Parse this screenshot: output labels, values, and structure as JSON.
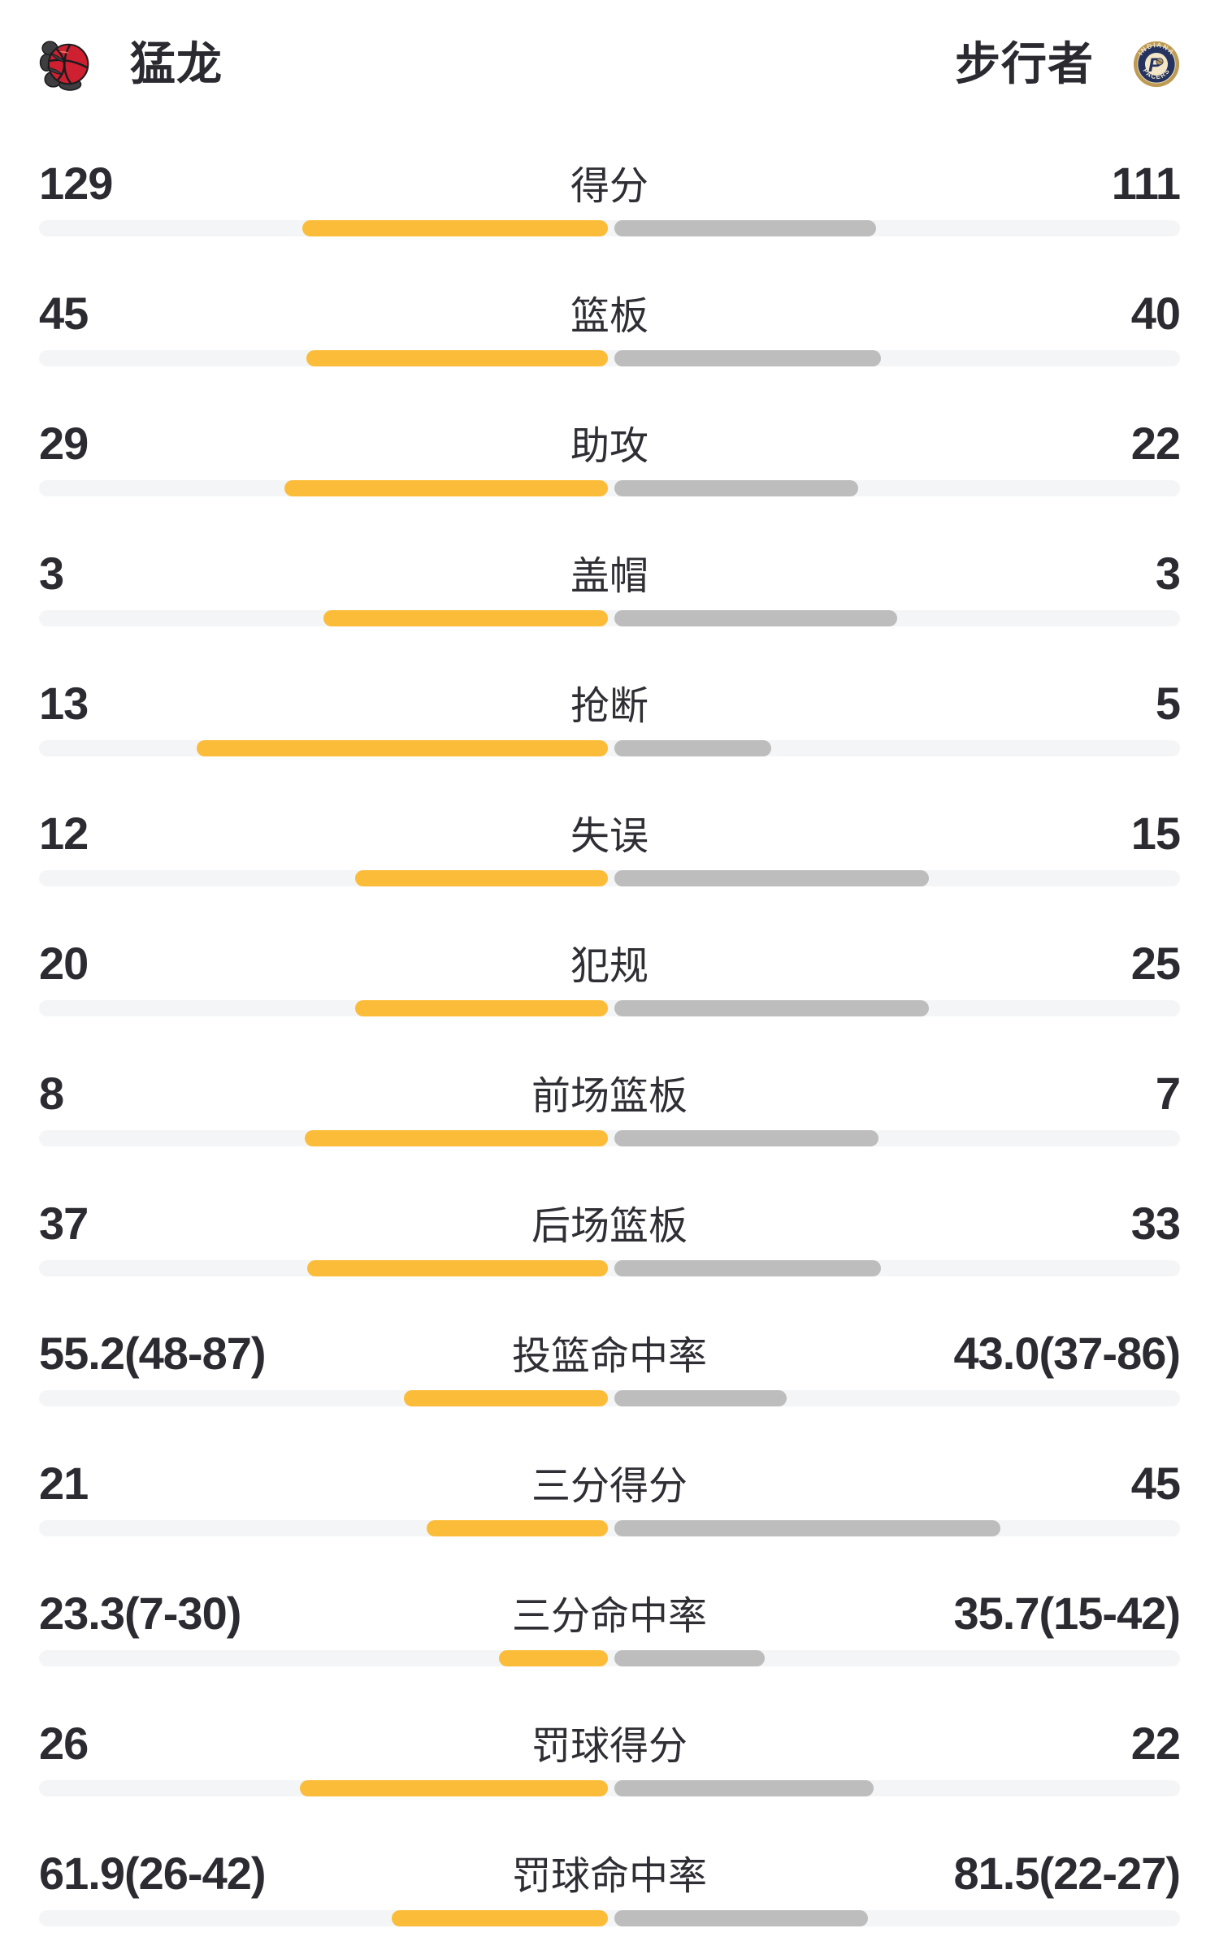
{
  "header": {
    "left_team": {
      "name": "猛龙",
      "logo": "raptors-logo"
    },
    "right_team": {
      "name": "步行者",
      "logo": "pacers-logo"
    }
  },
  "colors": {
    "background": "#FFFFFF",
    "text": "#2B2B31",
    "left_bar": "#FBBD39",
    "right_bar": "#BDBDBD",
    "bar_track": "#F4F5F7",
    "raptors_red": "#CE2030",
    "raptors_claw": "#3E3E40",
    "pacers_gold": "#BE9B54",
    "pacers_navy": "#24335F",
    "pacers_cream": "#F3E7C8"
  },
  "chart_data": {
    "type": "bar",
    "variant": "diverging-horizontal-team-comparison",
    "title": "",
    "legend_position": "top (team header row)",
    "grid": false,
    "categories": [
      "得分",
      "篮板",
      "助攻",
      "盖帽",
      "抢断",
      "失误",
      "犯规",
      "前场篮板",
      "后场篮板",
      "投篮命中率",
      "三分得分",
      "三分命中率",
      "罚球得分",
      "罚球命中率"
    ],
    "series": [
      {
        "name": "猛龙",
        "side": "left",
        "color": "#FBBD39",
        "values": [
          129,
          45,
          29,
          3,
          13,
          12,
          20,
          8,
          37,
          55.2,
          21,
          23.3,
          26,
          61.9
        ],
        "display": [
          "129",
          "45",
          "29",
          "3",
          "13",
          "12",
          "20",
          "8",
          "37",
          "55.2(48-87)",
          "21",
          "23.3(7-30)",
          "26",
          "61.9(26-42)"
        ]
      },
      {
        "name": "步行者",
        "side": "right",
        "color": "#BDBDBD",
        "values": [
          111,
          40,
          22,
          3,
          5,
          15,
          25,
          7,
          33,
          43.0,
          45,
          35.7,
          22,
          81.5
        ],
        "display": [
          "111",
          "40",
          "22",
          "3",
          "5",
          "15",
          "25",
          "7",
          "33",
          "43.0(37-86)",
          "45",
          "35.7(15-42)",
          "22",
          "81.5(22-27)"
        ]
      }
    ],
    "bar_fractions": {
      "note": "fraction of each half-track filled, measured from screenshot; count stats follow value/(left+right)",
      "left": [
        0.5375,
        0.5294,
        0.5686,
        0.5,
        0.7222,
        0.4444,
        0.4444,
        0.5333,
        0.5286,
        0.358,
        0.3182,
        0.191,
        0.5417,
        0.38
      ],
      "right": [
        0.4625,
        0.4706,
        0.4314,
        0.5,
        0.2778,
        0.5556,
        0.5556,
        0.4667,
        0.4714,
        0.305,
        0.6818,
        0.266,
        0.4583,
        0.448
      ]
    }
  }
}
